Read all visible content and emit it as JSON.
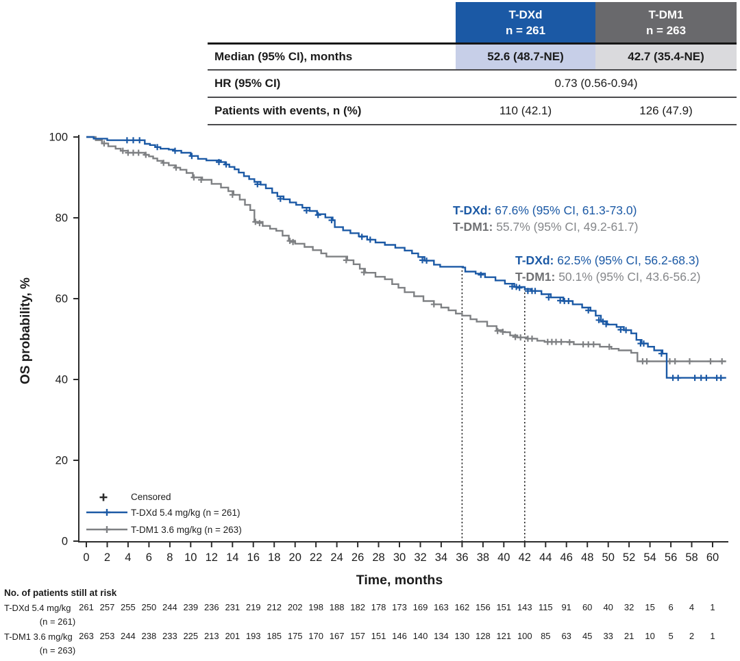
{
  "colors": {
    "tdxd_blue": "#1b59a5",
    "tdm1_curve_gray": "#7e8083",
    "tdm1_header_gray": "#69696c",
    "tdxd_light_blue": "#c7cfe8",
    "tdm1_light_gray": "#dadadd",
    "tdm1_name_gray": "#6f7073",
    "tdm1_annotation_gray": "#85878a",
    "text": "#1b1b1b"
  },
  "summary_table": {
    "columns": [
      {
        "name": "T-DXd",
        "n": "n = 261"
      },
      {
        "name": "T-DM1",
        "n": "n = 263"
      }
    ],
    "rows": [
      {
        "label": "Median (95% CI), months",
        "values": [
          "52.6 (48.7-NE)",
          "42.7 (35.4-NE)"
        ]
      },
      {
        "label": "HR (95% CI)",
        "values": [
          "0.73 (0.56-0.94)"
        ]
      },
      {
        "label": "Patients with events, n (%)",
        "values": [
          "110 (42.1)",
          "126 (47.9)"
        ]
      }
    ]
  },
  "annotations": {
    "at_36": [
      {
        "name": "T-DXd:",
        "value": "67.6% (95% CI, 61.3-73.0)"
      },
      {
        "name": "T-DM1:",
        "value": "55.7% (95% CI, 49.2-61.7)"
      }
    ],
    "at_42": [
      {
        "name": "T-DXd:",
        "value": "62.5% (95% CI, 56.2-68.3)"
      },
      {
        "name": "T-DM1:",
        "value": "50.1% (95% CI, 43.6-56.2)"
      }
    ]
  },
  "legend": {
    "censored_label": "Censored"
  },
  "at_risk_table": {
    "header": "No. of patients still at risk",
    "rows": [
      {
        "label": "T-DXd 5.4 mg/kg",
        "sub": "(n = 261)"
      },
      {
        "label": "T-DM1 3.6 mg/kg",
        "sub": "(n = 263)"
      }
    ]
  },
  "chart_data": {
    "type": "line",
    "subtype": "kaplan-meier-step",
    "xlabel": "Time, months",
    "ylabel": "OS probability, %",
    "xlim": [
      0,
      61.5
    ],
    "ylim": [
      0,
      100
    ],
    "xticks": [
      0,
      2,
      4,
      6,
      8,
      10,
      12,
      14,
      16,
      18,
      20,
      22,
      24,
      26,
      28,
      30,
      32,
      34,
      36,
      38,
      40,
      42,
      44,
      46,
      48,
      50,
      52,
      54,
      56,
      58,
      60
    ],
    "yticks": [
      0,
      20,
      40,
      60,
      80,
      100
    ],
    "grid": false,
    "reference_lines": [
      {
        "x": 36,
        "y_top_pct": 67.7
      },
      {
        "x": 42,
        "y_top_pct": 62.4
      }
    ],
    "series": [
      {
        "name": "T-DXd 5.4 mg/kg (n = 261)",
        "color": "#1b59a5",
        "steps": [
          [
            0,
            100
          ],
          [
            0.7,
            99.6
          ],
          [
            2,
            99.2
          ],
          [
            5.6,
            98.3
          ],
          [
            6.1,
            98
          ],
          [
            6.6,
            97.5
          ],
          [
            7.1,
            97.1
          ],
          [
            7.9,
            96.9
          ],
          [
            8.4,
            96.6
          ],
          [
            9.1,
            96.1
          ],
          [
            10,
            95.3
          ],
          [
            10.7,
            94.6
          ],
          [
            11.5,
            94.2
          ],
          [
            12.9,
            93.8
          ],
          [
            13.3,
            93.2
          ],
          [
            13.7,
            92.6
          ],
          [
            14.2,
            92
          ],
          [
            14.6,
            91.2
          ],
          [
            15.1,
            90.3
          ],
          [
            15.6,
            89.6
          ],
          [
            16.1,
            88.9
          ],
          [
            16.7,
            88.2
          ],
          [
            17.2,
            87.3
          ],
          [
            17.8,
            86.2
          ],
          [
            18.3,
            85.3
          ],
          [
            18.9,
            84.6
          ],
          [
            19.5,
            83.8
          ],
          [
            20.1,
            83.2
          ],
          [
            20.7,
            82.5
          ],
          [
            21.4,
            81.7
          ],
          [
            22.1,
            80.9
          ],
          [
            22.9,
            80.1
          ],
          [
            23.6,
            79.4
          ],
          [
            23.8,
            77.7
          ],
          [
            24.6,
            76.9
          ],
          [
            25.3,
            76.2
          ],
          [
            26.1,
            75.4
          ],
          [
            26.9,
            74.6
          ],
          [
            27.7,
            73.9
          ],
          [
            28.6,
            73.3
          ],
          [
            29.6,
            72.6
          ],
          [
            30.5,
            71.9
          ],
          [
            31.2,
            71.2
          ],
          [
            31.8,
            70.3
          ],
          [
            32.4,
            69.4
          ],
          [
            33.3,
            68.4
          ],
          [
            33.9,
            67.9
          ],
          [
            36.1,
            67.7
          ],
          [
            36.3,
            66.7
          ],
          [
            37.3,
            66.2
          ],
          [
            38.2,
            65.3
          ],
          [
            39.2,
            64.5
          ],
          [
            40.1,
            63.7
          ],
          [
            41,
            62.9
          ],
          [
            42,
            62.4
          ],
          [
            42.6,
            61.9
          ],
          [
            43.6,
            61.1
          ],
          [
            44.5,
            60.3
          ],
          [
            45.7,
            59.4
          ],
          [
            46.6,
            58.6
          ],
          [
            47.5,
            57.8
          ],
          [
            48.3,
            57
          ],
          [
            48.8,
            55.8
          ],
          [
            49.3,
            54.4
          ],
          [
            49.9,
            53.6
          ],
          [
            50.8,
            53
          ],
          [
            51.5,
            52.2
          ],
          [
            52.2,
            51.4
          ],
          [
            52.7,
            49.8
          ],
          [
            53.2,
            48.9
          ],
          [
            53.8,
            48.1
          ],
          [
            54.4,
            47.2
          ],
          [
            55.2,
            46.4
          ],
          [
            55.6,
            40.4
          ],
          [
            61.3,
            40.4
          ]
        ],
        "censors": [
          [
            3.9,
            99.2
          ],
          [
            4.5,
            99.2
          ],
          [
            5.1,
            99.2
          ],
          [
            6.8,
            97.5
          ],
          [
            8.5,
            96.6
          ],
          [
            10.1,
            95.3
          ],
          [
            12.7,
            93.8
          ],
          [
            13.4,
            93.2
          ],
          [
            16.4,
            88.3
          ],
          [
            18.6,
            84.7
          ],
          [
            21.1,
            81.8
          ],
          [
            22.2,
            80.7
          ],
          [
            23.5,
            79.4
          ],
          [
            26.4,
            75.3
          ],
          [
            27.2,
            74.6
          ],
          [
            32.2,
            69.5
          ],
          [
            32.6,
            69.4
          ],
          [
            37.8,
            65.9
          ],
          [
            40.8,
            63
          ],
          [
            41.2,
            62.9
          ],
          [
            41.5,
            62.7
          ],
          [
            42.3,
            61.9
          ],
          [
            42.7,
            61.9
          ],
          [
            43,
            61.9
          ],
          [
            44.3,
            60.3
          ],
          [
            45.4,
            59.5
          ],
          [
            45.8,
            59.4
          ],
          [
            46.2,
            59.4
          ],
          [
            48.1,
            57.1
          ],
          [
            49.1,
            54.7
          ],
          [
            49.5,
            54.3
          ],
          [
            49.8,
            53.7
          ],
          [
            51.2,
            52.3
          ],
          [
            51.7,
            52.2
          ],
          [
            53.1,
            48.9
          ],
          [
            53.4,
            48.9
          ],
          [
            55.1,
            46.4
          ],
          [
            56.2,
            40.4
          ],
          [
            56.7,
            40.4
          ],
          [
            58.3,
            40.4
          ],
          [
            58.9,
            40.4
          ],
          [
            59.4,
            40.4
          ],
          [
            60.4,
            40.4
          ],
          [
            60.8,
            40.4
          ]
        ],
        "at_risk": [
          261,
          257,
          255,
          250,
          244,
          239,
          236,
          231,
          219,
          212,
          202,
          198,
          188,
          182,
          178,
          173,
          169,
          163,
          162,
          156,
          151,
          143,
          115,
          91,
          60,
          40,
          32,
          15,
          6,
          4,
          1
        ]
      },
      {
        "name": "T-DM1 3.6 mg/kg (n = 263)",
        "color": "#7e8083",
        "steps": [
          [
            0,
            100
          ],
          [
            0.9,
            99.2
          ],
          [
            1.5,
            98.4
          ],
          [
            2.1,
            97.7
          ],
          [
            2.8,
            97.1
          ],
          [
            3.3,
            96.6
          ],
          [
            4,
            96.1
          ],
          [
            5.6,
            95.6
          ],
          [
            6,
            95.2
          ],
          [
            6.4,
            94.7
          ],
          [
            6.8,
            94.1
          ],
          [
            7.3,
            93.6
          ],
          [
            7.9,
            93
          ],
          [
            8.5,
            92.4
          ],
          [
            9,
            91.9
          ],
          [
            9.6,
            91.1
          ],
          [
            10.2,
            90
          ],
          [
            11.1,
            89.4
          ],
          [
            12,
            88.4
          ],
          [
            12.9,
            87.5
          ],
          [
            13.6,
            86.6
          ],
          [
            14.1,
            85.7
          ],
          [
            14.7,
            84.5
          ],
          [
            15.2,
            83.2
          ],
          [
            15.7,
            81.9
          ],
          [
            16.1,
            79
          ],
          [
            16.9,
            78
          ],
          [
            17.6,
            77.3
          ],
          [
            18.2,
            76.8
          ],
          [
            18.8,
            75.6
          ],
          [
            19.4,
            74.3
          ],
          [
            20,
            73.6
          ],
          [
            20.9,
            72.8
          ],
          [
            21.7,
            72
          ],
          [
            22.5,
            71.2
          ],
          [
            23,
            70.4
          ],
          [
            25,
            69.5
          ],
          [
            25.6,
            68.5
          ],
          [
            26.2,
            67.4
          ],
          [
            26.7,
            66.4
          ],
          [
            27.7,
            65.4
          ],
          [
            28.6,
            64.8
          ],
          [
            29.3,
            63.6
          ],
          [
            29.9,
            62.7
          ],
          [
            30.5,
            61.6
          ],
          [
            31.4,
            60.6
          ],
          [
            32.3,
            59.4
          ],
          [
            33.3,
            58.6
          ],
          [
            34,
            57.8
          ],
          [
            34.7,
            57.1
          ],
          [
            35.4,
            56.3
          ],
          [
            36,
            55.8
          ],
          [
            36.8,
            54.9
          ],
          [
            37.4,
            54.3
          ],
          [
            38.4,
            53.2
          ],
          [
            39.3,
            52.2
          ],
          [
            39.9,
            51.7
          ],
          [
            40.6,
            50.9
          ],
          [
            41.3,
            50.4
          ],
          [
            42.2,
            50.1
          ],
          [
            43.2,
            49.6
          ],
          [
            43.9,
            49.3
          ],
          [
            46.7,
            48.7
          ],
          [
            49.2,
            48.1
          ],
          [
            50.3,
            47.6
          ],
          [
            51,
            47.2
          ],
          [
            52.2,
            46.6
          ],
          [
            52.8,
            44.5
          ],
          [
            61.3,
            44.5
          ]
        ],
        "censors": [
          [
            1.7,
            98.4
          ],
          [
            3.5,
            96.6
          ],
          [
            4,
            96.1
          ],
          [
            4.5,
            96.1
          ],
          [
            5,
            96.1
          ],
          [
            5.7,
            95.6
          ],
          [
            7.4,
            93.6
          ],
          [
            8.6,
            92.4
          ],
          [
            10.3,
            90
          ],
          [
            11,
            89.4
          ],
          [
            14,
            85.7
          ],
          [
            16.2,
            79
          ],
          [
            16.6,
            78.7
          ],
          [
            19.5,
            74.3
          ],
          [
            19.8,
            74
          ],
          [
            24.9,
            69.5
          ],
          [
            26.6,
            66.5
          ],
          [
            33.3,
            58.6
          ],
          [
            39.4,
            52
          ],
          [
            39.9,
            51.8
          ],
          [
            41.1,
            50.5
          ],
          [
            41.6,
            50.4
          ],
          [
            42.3,
            50.1
          ],
          [
            42.7,
            50.1
          ],
          [
            44.2,
            49.3
          ],
          [
            44.6,
            49.3
          ],
          [
            45,
            49.3
          ],
          [
            45.5,
            49.3
          ],
          [
            46.3,
            49.2
          ],
          [
            47.6,
            48.7
          ],
          [
            48.1,
            48.7
          ],
          [
            48.6,
            48.7
          ],
          [
            50.1,
            48.1
          ],
          [
            53.3,
            44.5
          ],
          [
            53.7,
            44.5
          ],
          [
            55.9,
            44.5
          ],
          [
            56.4,
            44.5
          ],
          [
            57.8,
            44.5
          ],
          [
            59.8,
            44.5
          ],
          [
            60.9,
            44.5
          ]
        ],
        "at_risk": [
          263,
          253,
          244,
          238,
          233,
          225,
          213,
          201,
          193,
          185,
          175,
          170,
          167,
          157,
          151,
          146,
          140,
          134,
          130,
          128,
          121,
          100,
          85,
          63,
          45,
          33,
          21,
          10,
          5,
          2,
          1
        ]
      }
    ]
  }
}
